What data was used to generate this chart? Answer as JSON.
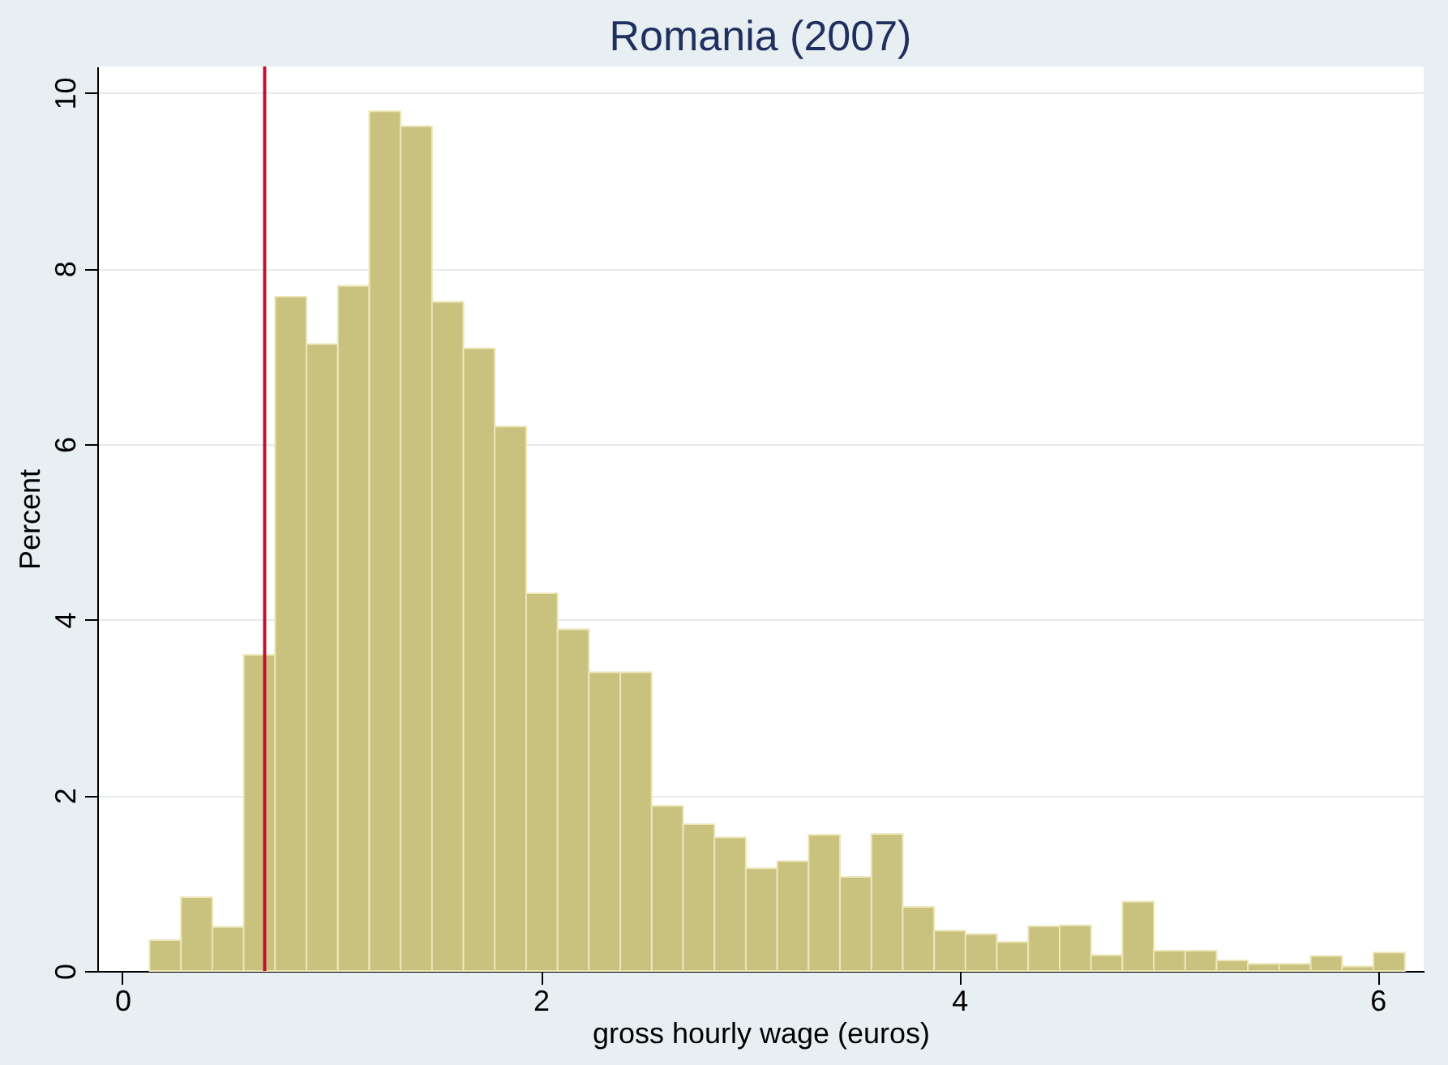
{
  "chart_data": {
    "type": "histogram",
    "title": "Romania (2007)",
    "xlabel": "gross hourly wage (euros)",
    "ylabel": "Percent",
    "bins": [
      0.13,
      0.28,
      0.43,
      0.58,
      0.73,
      0.88,
      1.03,
      1.18,
      1.33,
      1.48,
      1.63,
      1.78,
      1.93,
      2.08,
      2.23,
      2.38,
      2.53,
      2.68,
      2.83,
      2.98,
      3.13,
      3.28,
      3.43,
      3.58,
      3.73,
      3.88,
      4.03,
      4.18,
      4.33,
      4.48,
      4.63,
      4.78,
      4.93,
      5.08,
      5.23,
      5.38,
      5.53,
      5.68,
      5.83,
      5.98,
      6.13
    ],
    "values": [
      0.35,
      0.84,
      0.5,
      3.6,
      7.68,
      7.14,
      7.8,
      9.79,
      9.62,
      7.62,
      7.09,
      6.2,
      4.3,
      3.89,
      3.4,
      3.4,
      1.88,
      1.67,
      1.52,
      1.17,
      1.25,
      1.55,
      1.07,
      1.56,
      0.73,
      0.46,
      0.42,
      0.33,
      0.51,
      0.52,
      0.18,
      0.79,
      0.23,
      0.23,
      0.12,
      0.08,
      0.08,
      0.17,
      0.05,
      0.21
    ],
    "color": "#c9c27f",
    "xlim": [
      -0.12,
      6.22
    ],
    "xticks": [
      0,
      2,
      4,
      6
    ],
    "ylim": [
      0,
      10.3
    ],
    "yticks": [
      0,
      2,
      4,
      6,
      8,
      10
    ],
    "grid": "y",
    "ref_lines": [
      {
        "axis": "x",
        "value": 0.68,
        "color": "#c8102e"
      }
    ]
  }
}
